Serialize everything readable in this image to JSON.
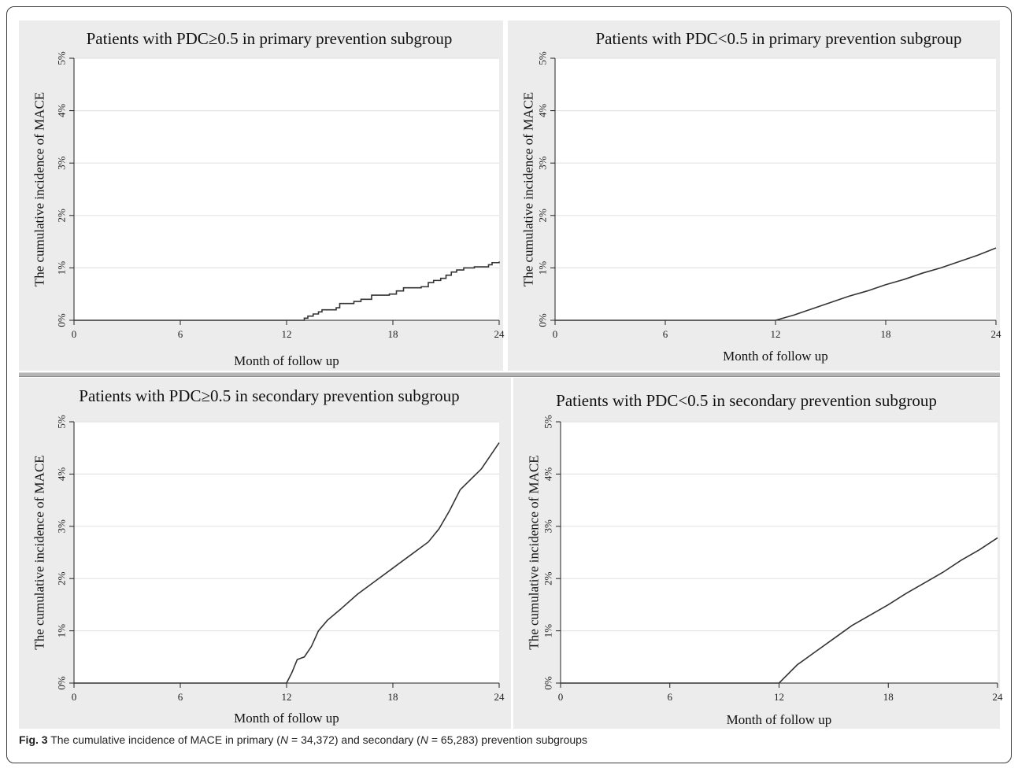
{
  "caption": {
    "fig_label": "Fig. 3",
    "text_1": " The cumulative incidence of MACE in primary (",
    "n_label_1": "N",
    "text_2": " = 34,372) and secondary (",
    "n_label_2": "N",
    "text_3": " = 65,283) prevention subgroups"
  },
  "colors": {
    "panel_bg": "#ececec",
    "plot_bg": "#ffffff",
    "line": "#333333",
    "grid": "#e4e4e4"
  },
  "chart_data": [
    {
      "type": "line",
      "title": "Patients with PDC≥0.5 in primary prevention subgroup",
      "xlabel": "Month of follow up",
      "ylabel": "The cumulative incidence of MACE",
      "xlim": [
        0,
        24
      ],
      "ylim": [
        0,
        5
      ],
      "xticks": [
        "0",
        "6",
        "12",
        "18",
        "24"
      ],
      "yticks": [
        "0%",
        "1%",
        "2%",
        "3%",
        "4%",
        "5%"
      ],
      "grid": true,
      "step": true,
      "series": [
        {
          "x": [
            0,
            13.0,
            13.2,
            13.5,
            13.8,
            14.0,
            14.8,
            15.0,
            15.8,
            16.2,
            16.8,
            17.2,
            17.8,
            18.2,
            18.6,
            19.6,
            20.0,
            20.3,
            20.7,
            21.0,
            21.3,
            21.6,
            22.0,
            22.6,
            23.0,
            23.4,
            23.6,
            24.0
          ],
          "y": [
            0,
            0.04,
            0.08,
            0.12,
            0.16,
            0.2,
            0.24,
            0.32,
            0.36,
            0.4,
            0.48,
            0.48,
            0.5,
            0.56,
            0.62,
            0.64,
            0.72,
            0.76,
            0.8,
            0.86,
            0.92,
            0.96,
            1.0,
            1.02,
            1.02,
            1.06,
            1.1,
            1.12
          ]
        }
      ]
    },
    {
      "type": "line",
      "title": "Patients with PDC<0.5 in primary prevention subgroup",
      "xlabel": "Month of follow up",
      "ylabel": "The cumulative incidence of MACE",
      "xlim": [
        0,
        24
      ],
      "ylim": [
        0,
        5
      ],
      "xticks": [
        "0",
        "6",
        "12",
        "18",
        "24"
      ],
      "yticks": [
        "0%",
        "1%",
        "2%",
        "3%",
        "4%",
        "5%"
      ],
      "grid": true,
      "step": false,
      "series": [
        {
          "x": [
            0,
            12.0,
            13.0,
            14.0,
            15.0,
            16.0,
            17.0,
            18.0,
            19.0,
            20.0,
            21.0,
            22.0,
            23.0,
            24.0
          ],
          "y": [
            0,
            0.0,
            0.1,
            0.22,
            0.34,
            0.46,
            0.56,
            0.68,
            0.78,
            0.9,
            1.0,
            1.12,
            1.24,
            1.38
          ]
        }
      ]
    },
    {
      "type": "line",
      "title": "Patients with PDC≥0.5 in secondary prevention subgroup",
      "xlabel": "Month of follow up",
      "ylabel": "The cumulative incidence of MACE",
      "xlim": [
        0,
        24
      ],
      "ylim": [
        0,
        5
      ],
      "xticks": [
        "0",
        "6",
        "12",
        "18",
        "24"
      ],
      "yticks": [
        "0%",
        "1%",
        "2%",
        "3%",
        "4%",
        "5%"
      ],
      "grid": true,
      "step": false,
      "series": [
        {
          "x": [
            0,
            12.0,
            12.3,
            12.6,
            13.0,
            13.4,
            13.8,
            14.3,
            15.0,
            16.0,
            17.0,
            18.0,
            19.0,
            20.0,
            20.6,
            21.2,
            21.8,
            22.4,
            23.0,
            23.6,
            24.0
          ],
          "y": [
            0,
            0.0,
            0.2,
            0.45,
            0.5,
            0.7,
            1.0,
            1.2,
            1.4,
            1.7,
            1.95,
            2.2,
            2.45,
            2.7,
            2.95,
            3.3,
            3.7,
            3.9,
            4.1,
            4.4,
            4.6
          ]
        }
      ]
    },
    {
      "type": "line",
      "title": "Patients with PDC<0.5 in secondary prevention subgroup",
      "xlabel": "Month of follow up",
      "ylabel": "The cumulative incidence of MACE",
      "xlim": [
        0,
        24
      ],
      "ylim": [
        0,
        5
      ],
      "xticks": [
        "0",
        "6",
        "12",
        "18",
        "24"
      ],
      "yticks": [
        "0%",
        "1%",
        "2%",
        "3%",
        "4%",
        "5%"
      ],
      "grid": true,
      "step": false,
      "series": [
        {
          "x": [
            0,
            12.0,
            13.0,
            14.0,
            15.0,
            16.0,
            17.0,
            18.0,
            19.0,
            20.0,
            21.0,
            22.0,
            23.0,
            24.0
          ],
          "y": [
            0,
            0.0,
            0.35,
            0.6,
            0.85,
            1.1,
            1.3,
            1.5,
            1.72,
            1.92,
            2.12,
            2.35,
            2.55,
            2.78
          ]
        }
      ]
    }
  ]
}
